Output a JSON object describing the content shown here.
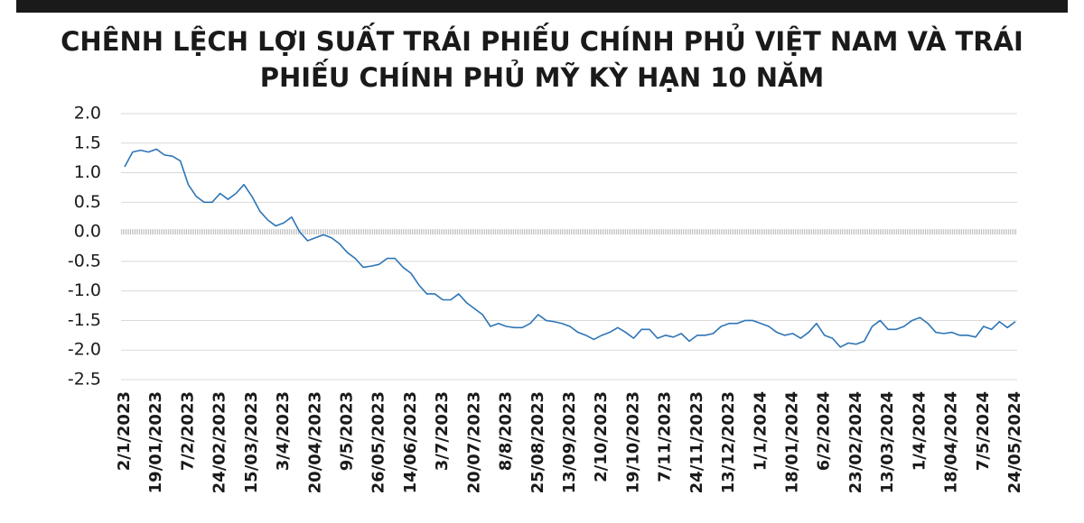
{
  "chart_data": {
    "type": "line",
    "title": "CHÊNH LỆCH LỢI SUẤT TRÁI PHIẾU CHÍNH PHỦ VIỆT NAM VÀ TRÁI PHIẾU CHÍNH PHỦ MỸ KỲ HẠN 10 NĂM",
    "categories": [
      "2/1/2023",
      null,
      null,
      null,
      "19/01/2023",
      null,
      null,
      null,
      "7/2/2023",
      null,
      null,
      null,
      "24/02/2023",
      null,
      null,
      null,
      "15/03/2023",
      null,
      null,
      null,
      "3/4/2023",
      null,
      null,
      null,
      "20/04/2023",
      null,
      null,
      null,
      "9/5/2023",
      null,
      null,
      null,
      "26/05/2023",
      null,
      null,
      null,
      "14/06/2023",
      null,
      null,
      null,
      "3/7/2023",
      null,
      null,
      null,
      "20/07/2023",
      null,
      null,
      null,
      "8/8/2023",
      null,
      null,
      null,
      "25/08/2023",
      null,
      null,
      null,
      "13/09/2023",
      null,
      null,
      null,
      "2/10/2023",
      null,
      null,
      null,
      "19/10/2023",
      null,
      null,
      null,
      "7/11/2023",
      null,
      null,
      null,
      "24/11/2023",
      null,
      null,
      null,
      "13/12/2023",
      null,
      null,
      null,
      "1/1/2024",
      null,
      null,
      null,
      "18/01/2024",
      null,
      null,
      null,
      "6/2/2024",
      null,
      null,
      null,
      "23/02/2024",
      null,
      null,
      null,
      "13/03/2024",
      null,
      null,
      null,
      "1/4/2024",
      null,
      null,
      null,
      "18/04/2024",
      null,
      null,
      null,
      "7/5/2024",
      null,
      null,
      null,
      "24/05/2024"
    ],
    "series": [
      {
        "color": "#2e75b6",
        "values": [
          1.1,
          1.35,
          1.38,
          1.35,
          1.4,
          1.3,
          1.28,
          1.2,
          0.8,
          0.6,
          0.5,
          0.5,
          0.65,
          0.55,
          0.65,
          0.8,
          0.6,
          0.35,
          0.2,
          0.1,
          0.15,
          0.25,
          0.0,
          -0.15,
          -0.1,
          -0.05,
          -0.1,
          -0.2,
          -0.35,
          -0.45,
          -0.6,
          -0.58,
          -0.55,
          -0.45,
          -0.45,
          -0.6,
          -0.7,
          -0.9,
          -1.05,
          -1.05,
          -1.15,
          -1.15,
          -1.05,
          -1.2,
          -1.3,
          -1.4,
          -1.6,
          -1.55,
          -1.6,
          -1.62,
          -1.62,
          -1.55,
          -1.4,
          -1.5,
          -1.52,
          -1.55,
          -1.6,
          -1.7,
          -1.75,
          -1.82,
          -1.75,
          -1.7,
          -1.62,
          -1.7,
          -1.8,
          -1.65,
          -1.65,
          -1.8,
          -1.75,
          -1.78,
          -1.72,
          -1.85,
          -1.75,
          -1.75,
          -1.72,
          -1.6,
          -1.55,
          -1.55,
          -1.5,
          -1.5,
          -1.55,
          -1.6,
          -1.7,
          -1.75,
          -1.72,
          -1.8,
          -1.7,
          -1.55,
          -1.75,
          -1.8,
          -1.95,
          -1.88,
          -1.9,
          -1.85,
          -1.6,
          -1.5,
          -1.65,
          -1.65,
          -1.6,
          -1.5,
          -1.45,
          -1.55,
          -1.7,
          -1.72,
          -1.7,
          -1.75,
          -1.75,
          -1.78,
          -1.6,
          -1.65,
          -1.52,
          -1.62,
          -1.52
        ]
      }
    ],
    "ylim": [
      -2.5,
      2
    ],
    "yticks": [
      {
        "value": 2,
        "label": "2.0"
      },
      1.5,
      {
        "value": 1,
        "label": "1.0"
      },
      0.5,
      {
        "value": 0,
        "label": "0.0"
      },
      -0.5,
      {
        "value": -1,
        "label": "-1.0"
      },
      -1.5,
      {
        "value": -2,
        "label": "-2.0"
      },
      -2.5
    ],
    "grid": true
  }
}
